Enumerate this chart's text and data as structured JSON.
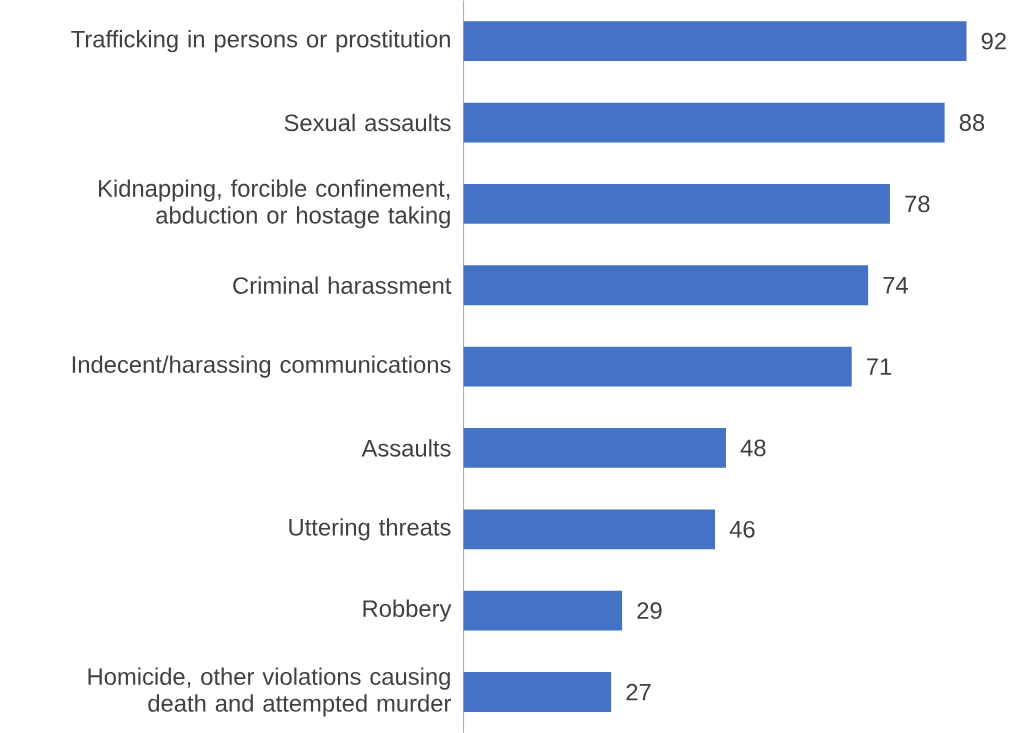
{
  "chart_data": {
    "type": "bar",
    "orientation": "horizontal",
    "categories": [
      "Trafficking in persons or prostitution",
      "Sexual assaults",
      "Kidnapping, forcible confinement, abduction or hostage taking",
      "Criminal harassment",
      "Indecent/harassing communications",
      "Assaults",
      "Uttering threats",
      "Robbery",
      "Homicide, other violations causing death and attempted murder"
    ],
    "values": [
      92,
      88,
      78,
      74,
      71,
      48,
      46,
      29,
      27
    ],
    "color": "#4472c4",
    "data_labels": true,
    "tick_labels": "y"
  }
}
